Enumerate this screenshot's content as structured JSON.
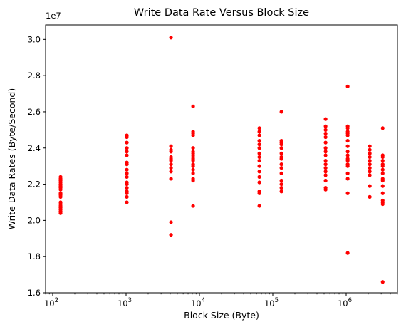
{
  "chart_data": {
    "type": "scatter",
    "title": "Write Data Rate Versus Block Size",
    "xlabel": "Block Size (Byte)",
    "ylabel": "Write Data Rates (Byte/Second)",
    "x_scale": "log",
    "xlim": [
      80,
      5000000
    ],
    "ylim": [
      1.6,
      3.08
    ],
    "y_offset_label": "1e7",
    "x_major_ticks": [
      {
        "value": 100,
        "base": "10",
        "exp": "2"
      },
      {
        "value": 1000,
        "base": "10",
        "exp": "3"
      },
      {
        "value": 10000,
        "base": "10",
        "exp": "4"
      },
      {
        "value": 100000,
        "base": "10",
        "exp": "5"
      },
      {
        "value": 1000000,
        "base": "10",
        "exp": "6"
      }
    ],
    "y_ticks": [
      {
        "value": 1.6,
        "label": "1.6"
      },
      {
        "value": 1.8,
        "label": "1.8"
      },
      {
        "value": 2.0,
        "label": "2.0"
      },
      {
        "value": 2.2,
        "label": "2.2"
      },
      {
        "value": 2.4,
        "label": "2.4"
      },
      {
        "value": 2.6,
        "label": "2.6"
      },
      {
        "value": 2.8,
        "label": "2.8"
      },
      {
        "value": 3.0,
        "label": "3.0"
      }
    ],
    "grid": false,
    "marker_color": "#ff0000",
    "series": [
      {
        "points": [
          {
            "x": 128,
            "ys": [
              2.04,
              2.05,
              2.06,
              2.07,
              2.08,
              2.09,
              2.1,
              2.13,
              2.14,
              2.15,
              2.17,
              2.18,
              2.19,
              2.2,
              2.21,
              2.22,
              2.23,
              2.24
            ]
          },
          {
            "x": 1024,
            "ys": [
              2.1,
              2.13,
              2.15,
              2.16,
              2.18,
              2.2,
              2.21,
              2.24,
              2.26,
              2.28,
              2.31,
              2.32,
              2.36,
              2.38,
              2.4,
              2.43,
              2.46,
              2.47
            ]
          },
          {
            "x": 4096,
            "ys": [
              1.92,
              1.99,
              2.23,
              2.27,
              2.29,
              2.31,
              2.33,
              2.34,
              2.35,
              2.38,
              2.39,
              2.41,
              3.01
            ]
          },
          {
            "x": 8192,
            "ys": [
              2.08,
              2.22,
              2.23,
              2.26,
              2.28,
              2.3,
              2.31,
              2.33,
              2.34,
              2.35,
              2.36,
              2.37,
              2.38,
              2.4,
              2.47,
              2.48,
              2.49,
              2.63
            ]
          },
          {
            "x": 65536,
            "ys": [
              2.08,
              2.15,
              2.16,
              2.21,
              2.24,
              2.27,
              2.3,
              2.33,
              2.35,
              2.37,
              2.4,
              2.42,
              2.44,
              2.47,
              2.49,
              2.51
            ]
          },
          {
            "x": 131072,
            "ys": [
              2.16,
              2.18,
              2.2,
              2.22,
              2.26,
              2.29,
              2.31,
              2.34,
              2.35,
              2.37,
              2.4,
              2.42,
              2.43,
              2.44,
              2.6
            ]
          },
          {
            "x": 524288,
            "ys": [
              2.17,
              2.18,
              2.22,
              2.25,
              2.27,
              2.29,
              2.31,
              2.33,
              2.36,
              2.38,
              2.4,
              2.43,
              2.46,
              2.48,
              2.5,
              2.52,
              2.56
            ]
          },
          {
            "x": 1048576,
            "ys": [
              1.82,
              2.15,
              2.23,
              2.26,
              2.3,
              2.31,
              2.33,
              2.34,
              2.36,
              2.38,
              2.41,
              2.44,
              2.47,
              2.48,
              2.49,
              2.51,
              2.52,
              2.74
            ]
          },
          {
            "x": 2097152,
            "ys": [
              2.13,
              2.19,
              2.25,
              2.27,
              2.29,
              2.31,
              2.33,
              2.35,
              2.37,
              2.39,
              2.41
            ]
          },
          {
            "x": 3145728,
            "ys": [
              1.66,
              2.09,
              2.1,
              2.11,
              2.15,
              2.19,
              2.22,
              2.23,
              2.26,
              2.28,
              2.3,
              2.31,
              2.33,
              2.35,
              2.36,
              2.51
            ]
          }
        ]
      }
    ]
  }
}
